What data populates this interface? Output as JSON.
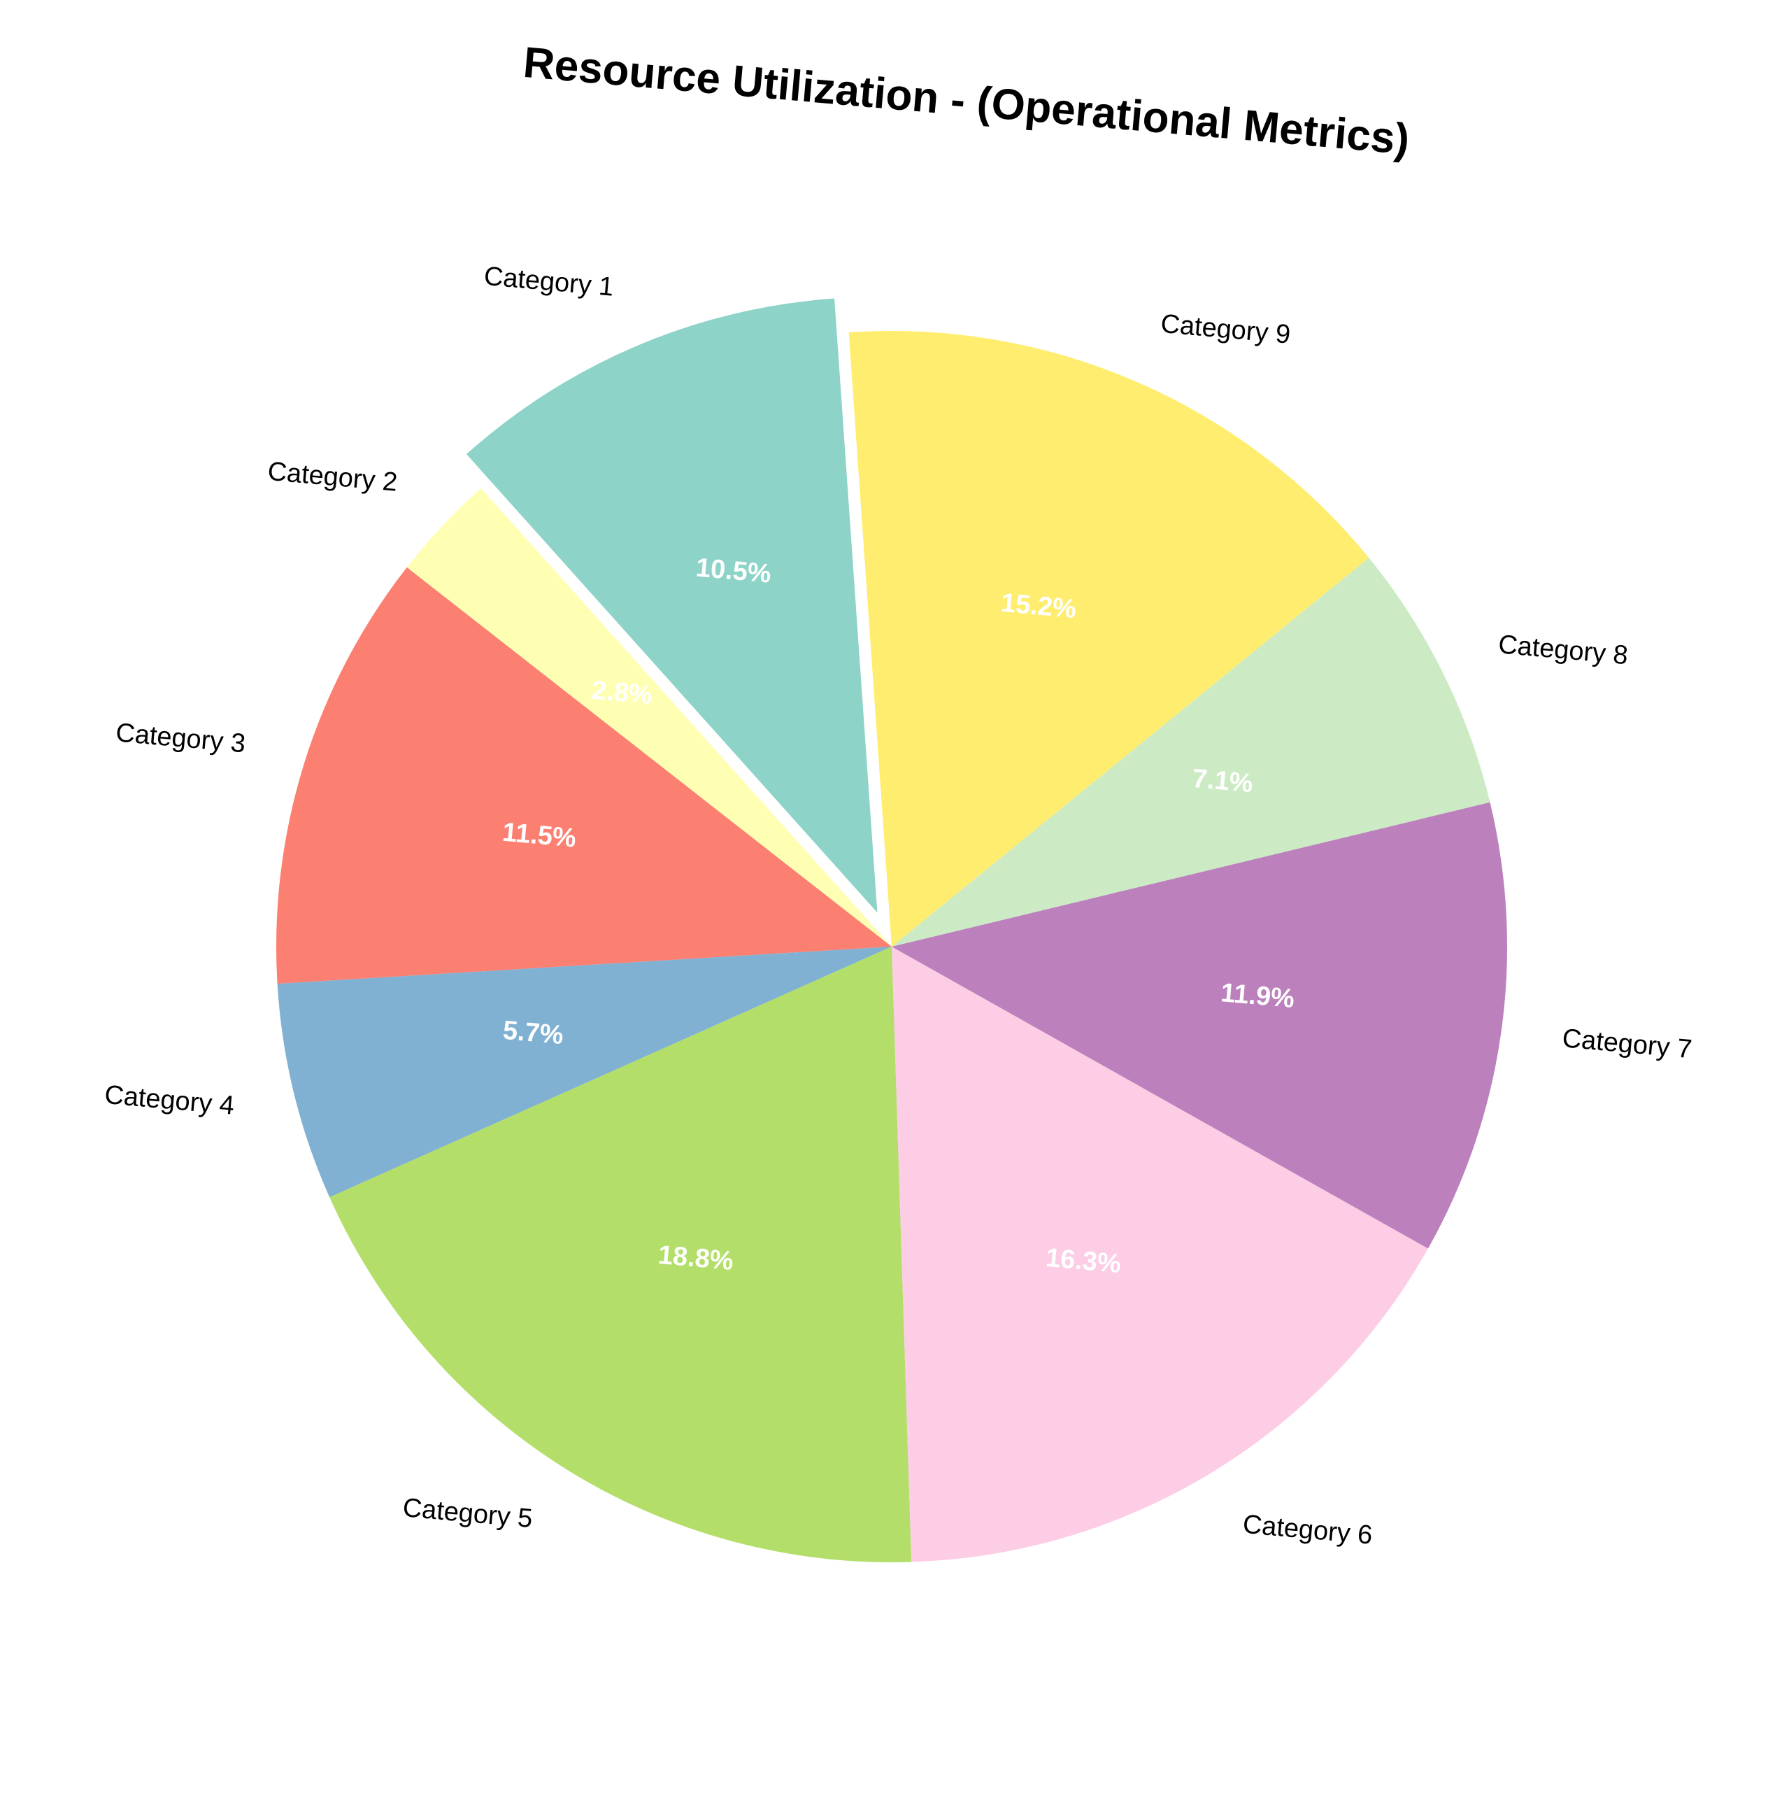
{
  "chart_data": {
    "type": "pie",
    "title": "Resource Utilization - (Operational Metrics)",
    "categories": [
      "Category 1",
      "Category 2",
      "Category 3",
      "Category 4",
      "Category 5",
      "Category 6",
      "Category 7",
      "Category 8",
      "Category 9"
    ],
    "values": [
      10.5,
      2.8,
      11.5,
      5.7,
      18.8,
      16.3,
      11.9,
      7.1,
      15.2
    ],
    "value_labels": [
      "10.5%",
      "2.8%",
      "11.5%",
      "5.7%",
      "18.8%",
      "16.3%",
      "11.9%",
      "7.1%",
      "15.2%"
    ],
    "colors": [
      "#8dd3c7",
      "#ffffb3",
      "#fb8072",
      "#80b1d3",
      "#b3de69",
      "#fccde5",
      "#bc80bd",
      "#ccebc5",
      "#ffed6f"
    ],
    "exploded": [
      "Category 1"
    ],
    "direction": "counterclockwise",
    "legend": "none"
  }
}
